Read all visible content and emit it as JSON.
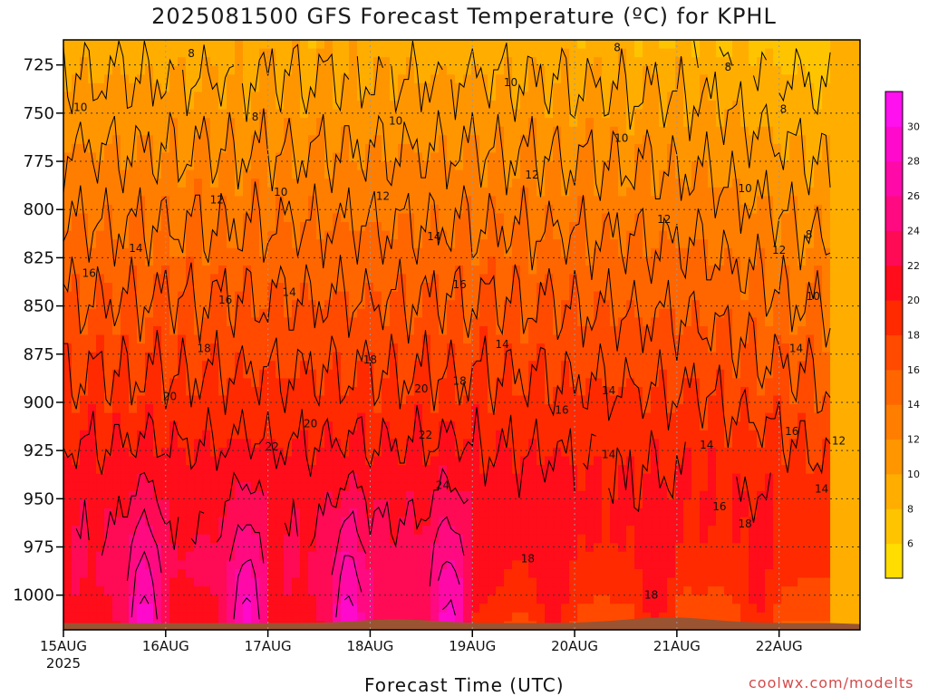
{
  "title": "2025081500 GFS Forecast Temperature (ºC) for KPHL",
  "xlabel": "Forecast Time (UTC)",
  "credit": "coolwx.com/modelts",
  "chart_data": {
    "type": "heatmap",
    "title": "2025081500 GFS Forecast Temperature (ºC) for KPHL",
    "xlabel": "Forecast Time (UTC)",
    "ylabel": "",
    "x_ticks": [
      "15AUG",
      "16AUG",
      "17AUG",
      "18AUG",
      "19AUG",
      "20AUG",
      "21AUG",
      "22AUG"
    ],
    "x_year_label": "2025",
    "y_ticks": [
      725,
      750,
      775,
      800,
      825,
      850,
      875,
      900,
      925,
      950,
      975,
      1000
    ],
    "y_range_hpa": [
      712,
      1018
    ],
    "x_range_hours": [
      0,
      180
    ],
    "grid": true,
    "colorbar_ticks": [
      6,
      8,
      10,
      12,
      14,
      16,
      18,
      20,
      22,
      24,
      26,
      28,
      30
    ],
    "colorbar_levels": [
      4,
      6,
      8,
      10,
      12,
      14,
      16,
      18,
      20,
      22,
      24,
      26,
      28,
      30,
      32
    ],
    "colors": [
      "#ffdd00",
      "#ffc400",
      "#ffae00",
      "#ff9600",
      "#ff7e00",
      "#ff6600",
      "#ff4a00",
      "#ff2a00",
      "#ff0d1a",
      "#ff0a55",
      "#ff0a80",
      "#ff0aa8",
      "#ff0acc",
      "#ff10ee"
    ],
    "ground_color": "#9a5432",
    "contour_labels": [
      {
        "v": 8,
        "t": 30,
        "p": 719
      },
      {
        "v": 8,
        "t": 45,
        "p": 752
      },
      {
        "v": 8,
        "t": 130,
        "p": 716
      },
      {
        "v": 8,
        "t": 156,
        "p": 726
      },
      {
        "v": 8,
        "t": 169,
        "p": 748
      },
      {
        "v": 8,
        "t": 175,
        "p": 813
      },
      {
        "v": 10,
        "t": 4,
        "p": 747
      },
      {
        "v": 10,
        "t": 51,
        "p": 791
      },
      {
        "v": 10,
        "t": 78,
        "p": 754
      },
      {
        "v": 10,
        "t": 105,
        "p": 734
      },
      {
        "v": 10,
        "t": 131,
        "p": 763
      },
      {
        "v": 10,
        "t": 160,
        "p": 789
      },
      {
        "v": 10,
        "t": 176,
        "p": 845
      },
      {
        "v": 12,
        "t": 36,
        "p": 795
      },
      {
        "v": 12,
        "t": 75,
        "p": 793
      },
      {
        "v": 12,
        "t": 110,
        "p": 782
      },
      {
        "v": 12,
        "t": 141,
        "p": 805
      },
      {
        "v": 12,
        "t": 168,
        "p": 821
      },
      {
        "v": 12,
        "t": 182,
        "p": 920
      },
      {
        "v": 14,
        "t": 17,
        "p": 820
      },
      {
        "v": 14,
        "t": 53,
        "p": 843
      },
      {
        "v": 14,
        "t": 87,
        "p": 814
      },
      {
        "v": 14,
        "t": 103,
        "p": 870
      },
      {
        "v": 14,
        "t": 128,
        "p": 894
      },
      {
        "v": 14,
        "t": 128,
        "p": 927
      },
      {
        "v": 14,
        "t": 151,
        "p": 922
      },
      {
        "v": 14,
        "t": 172,
        "p": 872
      },
      {
        "v": 14,
        "t": 178,
        "p": 945
      },
      {
        "v": 16,
        "t": 6,
        "p": 833
      },
      {
        "v": 16,
        "t": 38,
        "p": 847
      },
      {
        "v": 16,
        "t": 93,
        "p": 839
      },
      {
        "v": 16,
        "t": 117,
        "p": 904
      },
      {
        "v": 16,
        "t": 154,
        "p": 954
      },
      {
        "v": 16,
        "t": 171,
        "p": 915
      },
      {
        "v": 16,
        "t": 188,
        "p": 947
      },
      {
        "v": 18,
        "t": 33,
        "p": 872
      },
      {
        "v": 18,
        "t": 72,
        "p": 878
      },
      {
        "v": 18,
        "t": 93,
        "p": 889
      },
      {
        "v": 18,
        "t": 109,
        "p": 981
      },
      {
        "v": 18,
        "t": 138,
        "p": 1000
      },
      {
        "v": 18,
        "t": 160,
        "p": 963
      },
      {
        "v": 18,
        "t": 198,
        "p": 991
      },
      {
        "v": 20,
        "t": 25,
        "p": 897
      },
      {
        "v": 20,
        "t": 58,
        "p": 911
      },
      {
        "v": 20,
        "t": 84,
        "p": 893
      },
      {
        "v": 22,
        "t": 49,
        "p": 923
      },
      {
        "v": 22,
        "t": 85,
        "p": 917
      },
      {
        "v": 24,
        "t": 89,
        "p": 943
      }
    ]
  }
}
